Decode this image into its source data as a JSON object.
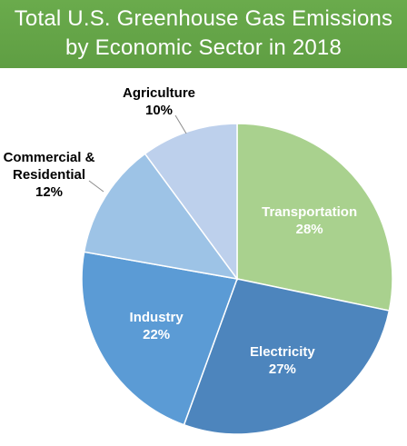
{
  "title": {
    "line1": "Total U.S. Greenhouse Gas Emissions",
    "line2": "by Economic Sector in 2018"
  },
  "chart_data": {
    "type": "pie",
    "title": "Total U.S. Greenhouse Gas Emissions by Economic Sector in 2018",
    "start_angle_deg": 0,
    "direction": "clockwise",
    "slices": [
      {
        "label": "Transportation",
        "label_lines": [
          "Transportation"
        ],
        "value": 28,
        "value_label": "28%",
        "color": "#a9d18e",
        "label_color": "#ffffff",
        "label_placement": "inside"
      },
      {
        "label": "Electricity",
        "label_lines": [
          "Electricity"
        ],
        "value": 27,
        "value_label": "27%",
        "color": "#4d85bd",
        "label_color": "#ffffff",
        "label_placement": "inside"
      },
      {
        "label": "Industry",
        "label_lines": [
          "Industry"
        ],
        "value": 22,
        "value_label": "22%",
        "color": "#5b9bd5",
        "label_color": "#ffffff",
        "label_placement": "inside"
      },
      {
        "label": "Commercial & Residential",
        "label_lines": [
          "Commercial &",
          "Residential"
        ],
        "value": 12,
        "value_label": "12%",
        "color": "#9dc3e6",
        "label_color": "#000000",
        "label_placement": "outside"
      },
      {
        "label": "Agriculture",
        "label_lines": [
          "Agriculture"
        ],
        "value": 10,
        "value_label": "10%",
        "color": "#bdd0ec",
        "label_color": "#000000",
        "label_placement": "outside"
      }
    ],
    "legend": "none"
  }
}
